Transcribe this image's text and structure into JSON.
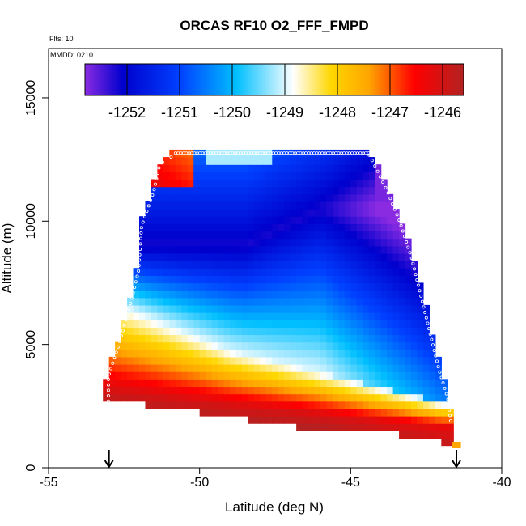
{
  "chart_data": {
    "type": "heatmap",
    "title": "ORCAS RF10 O2_FFF_FMPD",
    "flights_note": "Flts: 10",
    "date_note": "MMDD: 0210",
    "xlabel": "Latitude (deg N)",
    "ylabel": "Altitude (m)",
    "xlim": [
      -55,
      -40
    ],
    "ylim": [
      0,
      17000
    ],
    "x_ticks": [
      -55,
      -50,
      -45,
      -40
    ],
    "x_tick_labels": [
      "-55",
      "-50",
      "-45",
      "-40"
    ],
    "y_ticks": [
      0,
      5000,
      10000,
      15000
    ],
    "y_tick_labels": [
      "0",
      "5000",
      "10000",
      "15000"
    ],
    "colorbar": {
      "vmin": -1252.8,
      "vmax": -1245.6,
      "ticks": [
        -1252,
        -1251,
        -1250,
        -1249,
        -1248,
        -1247,
        -1246
      ],
      "tick_labels": [
        "-1252",
        "-1251",
        "-1250",
        "-1249",
        "-1248",
        "-1247",
        "-1246"
      ],
      "colors": [
        "#8a2be2",
        "#0000cd",
        "#0040ff",
        "#00bfff",
        "#ffffff",
        "#ffd700",
        "#ffa500",
        "#ff0000",
        "#b22222"
      ]
    },
    "footprint": {
      "top_altitude": 12900,
      "west_edge": [
        [
          12700,
          -50.9
        ],
        [
          12300,
          -51.4
        ],
        [
          11200,
          -51.6
        ],
        [
          10500,
          -51.8
        ],
        [
          9800,
          -52.0
        ],
        [
          8000,
          -52.1
        ],
        [
          7000,
          -52.3
        ],
        [
          5200,
          -52.7
        ],
        [
          3700,
          -53.1
        ],
        [
          2600,
          -53.1
        ]
      ],
      "east_edge": [
        [
          12900,
          -44.4
        ],
        [
          12200,
          -44.1
        ],
        [
          11200,
          -43.7
        ],
        [
          10000,
          -43.3
        ],
        [
          8500,
          -42.9
        ],
        [
          7000,
          -42.6
        ],
        [
          5500,
          -42.3
        ],
        [
          4000,
          -42.0
        ],
        [
          2800,
          -41.7
        ],
        [
          1800,
          -41.6
        ],
        [
          1000,
          -41.6
        ]
      ],
      "bottom_steps": [
        [
          -53.1,
          2600
        ],
        [
          -51.8,
          2300
        ],
        [
          -50.0,
          2000
        ],
        [
          -48.3,
          1800
        ],
        [
          -46.8,
          1600
        ],
        [
          -45.1,
          1500
        ],
        [
          -43.4,
          1300
        ],
        [
          -42.0,
          1000
        ],
        [
          -41.6,
          1000
        ]
      ],
      "extra_cell": [
        -41.5,
        800
      ]
    },
    "value_model": {
      "high_band": [
        [
          -53.0,
          3100
        ],
        [
          -49.0,
          2500
        ],
        [
          -45.0,
          2000
        ],
        [
          -42.0,
          1700
        ]
      ],
      "white_band": [
        [
          -53.0,
          6800
        ],
        [
          -49.0,
          4800
        ],
        [
          -45.0,
          3600
        ],
        [
          -42.0,
          2700
        ]
      ],
      "core_band": [
        [
          -52.0,
          9000
        ],
        [
          -48.5,
          9000
        ],
        [
          -46.0,
          10500
        ],
        [
          -44.0,
          10500
        ]
      ]
    },
    "flight_track_markers": "white open circles along the footprint edges",
    "arrows": [
      {
        "latitude": -53.0,
        "meaning": "profile marker"
      },
      {
        "latitude": -41.5,
        "meaning": "profile marker"
      }
    ]
  }
}
